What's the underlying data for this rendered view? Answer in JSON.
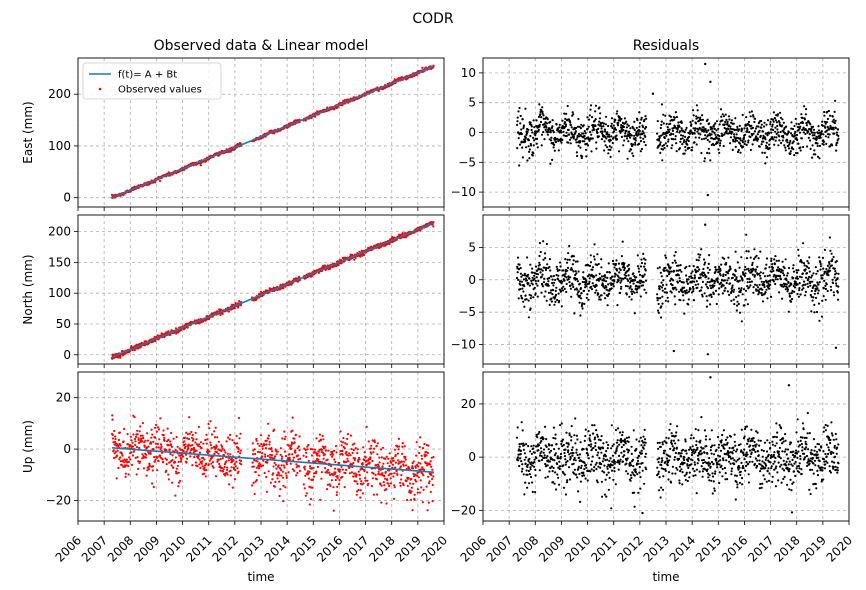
{
  "figure": {
    "title": "CODR",
    "left_title": "Observed data & Linear model",
    "right_title": "Residuals",
    "xlabel": "time",
    "model_color": "#1f77b4",
    "observed_color": "#ff0000",
    "residual_color": "#000000"
  },
  "legend": {
    "model_label": "f(t)= A + Bt",
    "observed_label": "Observed values",
    "placement": "upper-left of East panel"
  },
  "chart_data": [
    {
      "type": "scatter",
      "panel": "east-observed",
      "ylabel": "East (mm)",
      "xlim": [
        2006,
        2020
      ],
      "ylim": [
        -18,
        270
      ],
      "yticks": [
        0,
        100,
        200
      ],
      "grid": true,
      "x_range_observed": [
        2007.3,
        2019.6
      ],
      "series": [
        {
          "name": "f(t)= A + Bt",
          "type": "line",
          "x": [
            2007.3,
            2019.6
          ],
          "y": [
            0,
            254
          ]
        },
        {
          "name": "Observed values",
          "type": "scatter",
          "x_range": [
            2007.3,
            2019.6
          ],
          "trend": [
            0,
            254
          ],
          "noise_sd": 1.6,
          "gaps": [
            [
              2012.25,
              2012.65
            ],
            [
              2014.5,
              2014.62
            ]
          ]
        }
      ]
    },
    {
      "type": "scatter",
      "panel": "east-residuals",
      "xlim": [
        2006,
        2020
      ],
      "ylim": [
        -12.5,
        12.5
      ],
      "yticks": [
        -10,
        -5,
        0,
        5,
        10
      ],
      "grid": true,
      "series": [
        {
          "type": "scatter",
          "x_range": [
            2007.3,
            2019.6
          ],
          "mean": 0,
          "noise_sd": 1.6,
          "outliers": [
            [
              2014.5,
              11.5
            ],
            [
              2014.6,
              -10.5
            ],
            [
              2014.7,
              8.5
            ],
            [
              2012.5,
              6.5
            ]
          ]
        }
      ]
    },
    {
      "type": "scatter",
      "panel": "north-observed",
      "ylabel": "North (mm)",
      "xlim": [
        2006,
        2020
      ],
      "ylim": [
        -15,
        227
      ],
      "yticks": [
        0,
        50,
        100,
        150,
        200
      ],
      "grid": true,
      "series": [
        {
          "name": "f(t)= A + Bt",
          "type": "line",
          "x": [
            2007.3,
            2019.6
          ],
          "y": [
            -4,
            214
          ]
        },
        {
          "name": "Observed values",
          "type": "scatter",
          "x_range": [
            2007.3,
            2019.6
          ],
          "trend": [
            -4,
            214
          ],
          "noise_sd": 1.8,
          "gaps": [
            [
              2012.25,
              2012.65
            ],
            [
              2014.5,
              2014.62
            ]
          ]
        }
      ]
    },
    {
      "type": "scatter",
      "panel": "north-residuals",
      "xlim": [
        2006,
        2020
      ],
      "ylim": [
        -13,
        10
      ],
      "yticks": [
        -10,
        -5,
        0,
        5
      ],
      "grid": true,
      "series": [
        {
          "type": "scatter",
          "x_range": [
            2007.3,
            2019.6
          ],
          "mean": 0,
          "noise_sd": 1.8,
          "outliers": [
            [
              2014.5,
              8.5
            ],
            [
              2014.6,
              -11.5
            ],
            [
              2019.5,
              -10.5
            ],
            [
              2013.3,
              -11
            ]
          ]
        }
      ]
    },
    {
      "type": "scatter",
      "panel": "up-observed",
      "ylabel": "Up (mm)",
      "xlim": [
        2006,
        2020
      ],
      "ylim": [
        -28,
        30
      ],
      "yticks": [
        -20,
        0,
        20
      ],
      "grid": true,
      "series": [
        {
          "name": "f(t)= A + Bt",
          "type": "line",
          "x": [
            2007.3,
            2019.6
          ],
          "y": [
            0.5,
            -9
          ]
        },
        {
          "name": "Observed values",
          "type": "scatter",
          "x_range": [
            2007.3,
            2019.6
          ],
          "trend": [
            0.5,
            -9
          ],
          "noise_sd": 5,
          "gaps": [
            [
              2012.25,
              2012.65
            ],
            [
              2014.5,
              2014.62
            ]
          ]
        }
      ]
    },
    {
      "type": "scatter",
      "panel": "up-residuals",
      "xlim": [
        2006,
        2020
      ],
      "ylim": [
        -24,
        32
      ],
      "yticks": [
        -20,
        0,
        20
      ],
      "grid": true,
      "series": [
        {
          "type": "scatter",
          "x_range": [
            2007.3,
            2019.6
          ],
          "mean": 0,
          "noise_sd": 5,
          "outliers": [
            [
              2014.7,
              30
            ],
            [
              2017.7,
              27
            ],
            [
              2012.1,
              -21
            ]
          ]
        }
      ]
    }
  ],
  "xticks": [
    "2006",
    "2007",
    "2008",
    "2009",
    "2010",
    "2011",
    "2012",
    "2013",
    "2014",
    "2015",
    "2016",
    "2017",
    "2018",
    "2019",
    "2020"
  ]
}
